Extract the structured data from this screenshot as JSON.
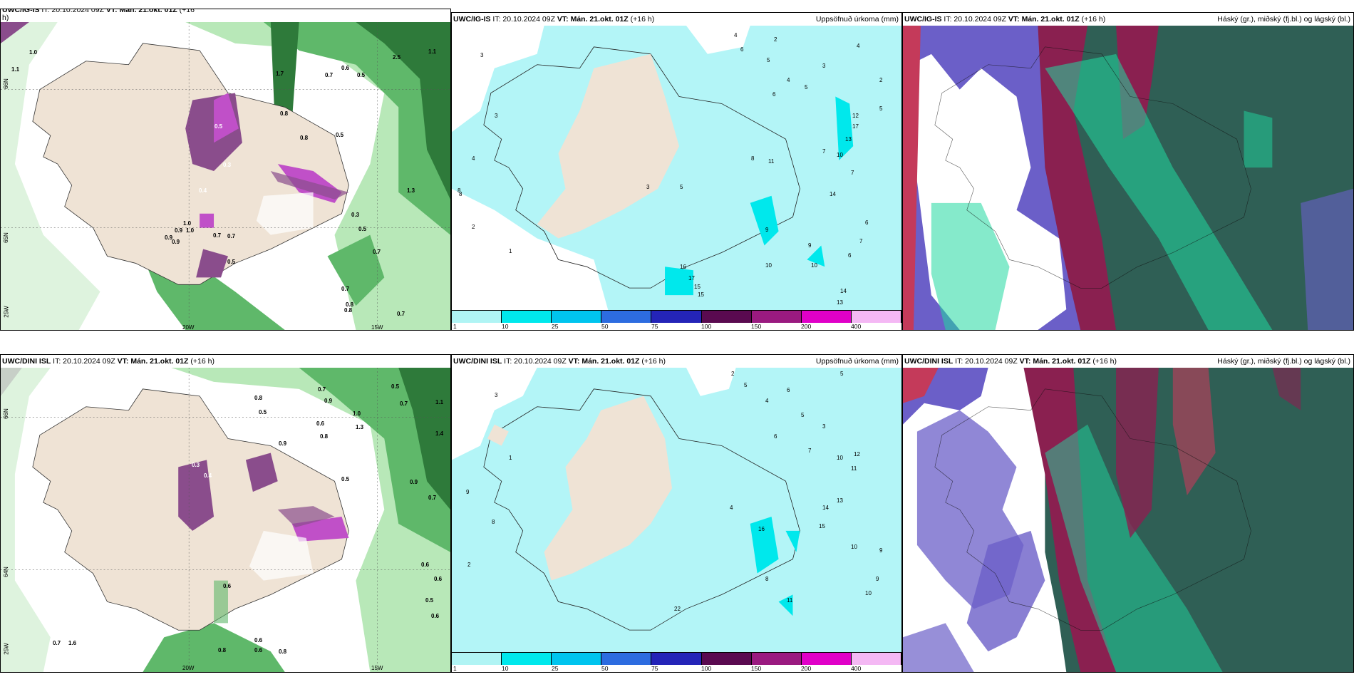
{
  "panels": {
    "top_left": {
      "source": "UWC/IG-IS",
      "it": "IT: 20.10.2024 09Z",
      "vt_label": "VT:",
      "vt": "Mán. 21.okt. 01Z",
      "lead": "(+16",
      "lead2": "h)",
      "title": ""
    },
    "top_mid": {
      "source": "UWC/IG-IS",
      "it": "IT: 20.10.2024 09Z",
      "vt_label": "VT:",
      "vt": "Mán. 21.okt. 01Z",
      "lead": "(+16 h)",
      "title": "Uppsöfnuð úrkoma (mm)"
    },
    "top_right": {
      "source": "UWC/IG-IS",
      "it": "IT: 20.10.2024 09Z",
      "vt_label": "VT:",
      "vt": "Mán. 21.okt. 01Z",
      "lead": "(+16 h)",
      "title": "Háský (gr.), miðský (fj.bl.) og lágský (bl.)"
    },
    "bot_left": {
      "source": "UWC/DINI ISL",
      "it": "IT: 20.10.2024 09Z",
      "vt_label": "VT:",
      "vt": "Mán. 21.okt. 01Z",
      "lead": "(+16 h)",
      "title": ""
    },
    "bot_mid": {
      "source": "UWC/DINI ISL",
      "it": "IT: 20.10.2024 09Z",
      "vt_label": "VT:",
      "vt": "Mán. 21.okt. 01Z",
      "lead": "(+16 h)",
      "title": "Uppsöfnuð úrkoma (mm)"
    },
    "bot_right": {
      "source": "UWC/DINI ISL",
      "it": "IT: 20.10.2024 09Z",
      "vt_label": "VT:",
      "vt": "Mán. 21.okt. 01Z",
      "lead": "(+16 h)",
      "title": "Háský (gr.), miðský (fj.bl.) og lágský (bl.)"
    }
  },
  "axis_labels": {
    "lat_66": "66N",
    "lat_65": "65N",
    "lat_64": "64N",
    "lon_25": "25W",
    "lon_20": "20W",
    "lon_15": "15W"
  },
  "precip_scale": {
    "ticks": [
      "1",
      "10",
      "25",
      "50",
      "75",
      "100",
      "150",
      "200",
      "400"
    ],
    "colors": [
      "#b0f4f4",
      "#00e8ec",
      "#00c4ee",
      "#2d6ce0",
      "#2424b8",
      "#5a0a50",
      "#9a1a80",
      "#e000c8",
      "#f4b8f4"
    ]
  },
  "colors": {
    "land": "#efe3d5",
    "sea_precip": "#b3f5f7",
    "cloud_high": "#2f5f55",
    "cloud_mid": "#6b5fc8",
    "cloud_low": "#20d8a0",
    "wind_green_dark": "#2e7a3a",
    "wind_green_light": "#c8ecc8",
    "magenta": "#c050c8"
  },
  "top_left_values": [
    "1.0",
    "1.1",
    "0.7",
    "0.6",
    "0.5",
    "0.8",
    "0.9",
    "1.0",
    "1.1",
    "1.3",
    "0.3",
    "0.4",
    "0.5",
    "2.5",
    "1.7",
    "0.7",
    "0.8",
    "1.0",
    "0.5",
    "0.7",
    "0.9",
    "0.7",
    "0.5",
    "0.8",
    "0.7",
    "0.3",
    "0.8",
    "0.5",
    "0.9",
    "0.7"
  ],
  "top_mid_values": [
    "3",
    "4",
    "6",
    "5",
    "2",
    "4",
    "6",
    "5",
    "4",
    "3",
    "2",
    "5",
    "4",
    "3",
    "8",
    "7",
    "7",
    "6",
    "13",
    "12",
    "17",
    "11",
    "10",
    "14",
    "15",
    "16",
    "17",
    "15",
    "13",
    "14",
    "10",
    "8",
    "1",
    "2",
    "9",
    "3",
    "5",
    "10",
    "7",
    "6",
    "8",
    "9"
  ],
  "bot_left_values": [
    "0.8",
    "0.7",
    "0.9",
    "0.5",
    "1.0",
    "0.6",
    "0.8",
    "0.9",
    "1.3",
    "0.5",
    "0.7",
    "1.1",
    "1.4",
    "0.9",
    "0.6",
    "0.6",
    "0.8",
    "0.7",
    "0.6",
    "0.5",
    "0.6",
    "0.6",
    "0.8",
    "0.6",
    "0.5",
    "0.4",
    "0.3",
    "1.6",
    "0.7"
  ],
  "bot_mid_values": [
    "3",
    "2",
    "5",
    "4",
    "6",
    "5",
    "3",
    "8",
    "9",
    "10",
    "11",
    "12",
    "13",
    "14",
    "15",
    "16",
    "10",
    "9",
    "8",
    "4",
    "6",
    "7",
    "5",
    "11",
    "1",
    "2",
    "22",
    "10",
    "9"
  ]
}
